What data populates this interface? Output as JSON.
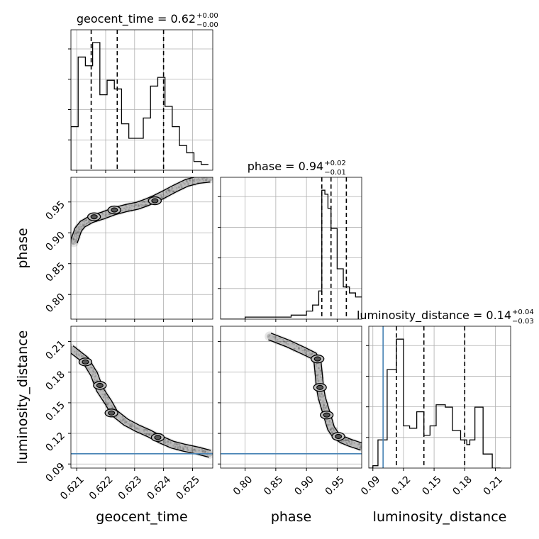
{
  "chart_data": {
    "type": "corner",
    "parameters": [
      "geocent_time",
      "phase",
      "luminosity_distance"
    ],
    "truths": {
      "luminosity_distance": 0.1
    },
    "titles": [
      {
        "param": "geocent_time",
        "text": "geocent_time = 0.62",
        "plus": "+0.00",
        "minus": "−0.00"
      },
      {
        "param": "phase",
        "text": "phase = 0.94",
        "plus": "+0.02",
        "minus": "−0.01"
      },
      {
        "param": "luminosity_distance",
        "text": "luminosity_distance = 0.14",
        "plus": "+0.04",
        "minus": "−0.03"
      }
    ],
    "axes": {
      "geocent_time": {
        "range": [
          0.6208,
          0.6257
        ],
        "ticks": [
          0.621,
          0.622,
          0.623,
          0.624,
          0.625
        ],
        "tick_labels": [
          "0.621",
          "0.622",
          "0.623",
          "0.624",
          "0.625"
        ],
        "label": "geocent_time"
      },
      "phase": {
        "range": [
          0.76,
          0.99
        ],
        "ticks": [
          0.8,
          0.85,
          0.9,
          0.95
        ],
        "tick_labels": [
          "0.80",
          "0.85",
          "0.90",
          "0.95"
        ],
        "label": "phase"
      },
      "luminosity_distance": {
        "range": [
          0.086,
          0.225
        ],
        "ticks": [
          0.09,
          0.12,
          0.15,
          0.18,
          0.21
        ],
        "tick_labels": [
          "0.09",
          "0.12",
          "0.15",
          "0.18",
          "0.21"
        ],
        "label": "luminosity_distance"
      }
    },
    "histograms": {
      "geocent_time": {
        "edges": [
          0.6208,
          0.62105,
          0.6213,
          0.62155,
          0.6218,
          0.62205,
          0.6223,
          0.62255,
          0.6228,
          0.62305,
          0.6233,
          0.62355,
          0.6238,
          0.62405,
          0.6243,
          0.62455,
          0.6248,
          0.62505,
          0.6253,
          0.62555
        ],
        "counts": [
          30,
          78,
          72,
          88,
          52,
          62,
          56,
          32,
          22,
          22,
          36,
          58,
          64,
          44,
          30,
          17,
          12,
          6,
          4
        ],
        "quantiles": [
          0.6215,
          0.6224,
          0.624
        ]
      },
      "phase": {
        "edges": [
          0.76,
          0.8,
          0.85,
          0.875,
          0.9,
          0.91,
          0.92,
          0.925,
          0.93,
          0.935,
          0.94,
          0.95,
          0.96,
          0.97,
          0.98,
          0.99
        ],
        "counts": [
          0,
          1,
          1,
          2,
          4,
          7,
          14,
          64,
          62,
          55,
          45,
          25,
          16,
          13,
          11
        ],
        "quantiles": [
          0.925,
          0.94,
          0.965
        ]
      },
      "luminosity_distance": {
        "edges": [
          0.086,
          0.09,
          0.095,
          0.104,
          0.113,
          0.12,
          0.126,
          0.133,
          0.14,
          0.146,
          0.152,
          0.161,
          0.168,
          0.176,
          0.182,
          0.185,
          0.19,
          0.198,
          0.207,
          0.215
        ],
        "counts": [
          0,
          1,
          12,
          42,
          55,
          18,
          17,
          24,
          14,
          18,
          27,
          26,
          16,
          12,
          10,
          12,
          26,
          6,
          0
        ],
        "quantiles": [
          0.113,
          0.14,
          0.18
        ]
      }
    },
    "pairs": [
      {
        "x": "geocent_time",
        "y": "phase",
        "ridge": [
          [
            0.6209,
            0.885
          ],
          [
            0.62105,
            0.905
          ],
          [
            0.6212,
            0.914
          ],
          [
            0.6215,
            0.922
          ],
          [
            0.6219,
            0.928
          ],
          [
            0.6223,
            0.935
          ],
          [
            0.6227,
            0.94
          ],
          [
            0.6231,
            0.944
          ],
          [
            0.6234,
            0.949
          ],
          [
            0.6237,
            0.955
          ],
          [
            0.624,
            0.962
          ],
          [
            0.6244,
            0.972
          ],
          [
            0.6248,
            0.981
          ],
          [
            0.6252,
            0.986
          ],
          [
            0.6256,
            0.988
          ]
        ],
        "modes": [
          [
            0.6216,
            0.926
          ],
          [
            0.6223,
            0.937
          ],
          [
            0.6237,
            0.952
          ]
        ]
      },
      {
        "x": "geocent_time",
        "y": "luminosity_distance",
        "ridge": [
          [
            0.6208,
            0.203
          ],
          [
            0.6213,
            0.192
          ],
          [
            0.6216,
            0.178
          ],
          [
            0.6218,
            0.163
          ],
          [
            0.6221,
            0.15
          ],
          [
            0.6223,
            0.14
          ],
          [
            0.6227,
            0.131
          ],
          [
            0.6231,
            0.125
          ],
          [
            0.6235,
            0.12
          ],
          [
            0.6239,
            0.114
          ],
          [
            0.6243,
            0.109
          ],
          [
            0.6247,
            0.106
          ],
          [
            0.6252,
            0.103
          ],
          [
            0.6256,
            0.1
          ]
        ],
        "modes": [
          [
            0.6213,
            0.19
          ],
          [
            0.6218,
            0.167
          ],
          [
            0.6222,
            0.14
          ],
          [
            0.6238,
            0.116
          ]
        ]
      },
      {
        "x": "phase",
        "y": "luminosity_distance",
        "ridge": [
          [
            0.84,
            0.215
          ],
          [
            0.87,
            0.208
          ],
          [
            0.895,
            0.201
          ],
          [
            0.912,
            0.196
          ],
          [
            0.918,
            0.19
          ],
          [
            0.92,
            0.178
          ],
          [
            0.922,
            0.165
          ],
          [
            0.925,
            0.155
          ],
          [
            0.93,
            0.145
          ],
          [
            0.935,
            0.135
          ],
          [
            0.94,
            0.125
          ],
          [
            0.948,
            0.118
          ],
          [
            0.958,
            0.114
          ],
          [
            0.97,
            0.111
          ],
          [
            0.99,
            0.107
          ]
        ],
        "modes": [
          [
            0.918,
            0.193
          ],
          [
            0.922,
            0.165
          ],
          [
            0.933,
            0.138
          ],
          [
            0.952,
            0.117
          ]
        ]
      }
    ]
  }
}
